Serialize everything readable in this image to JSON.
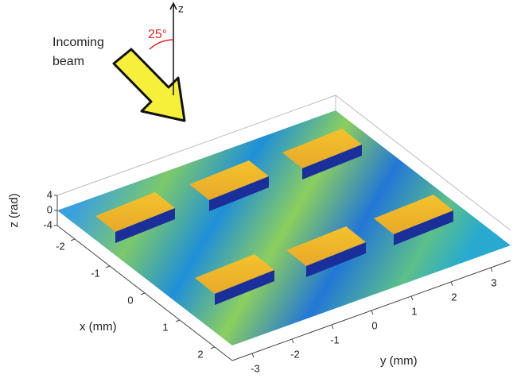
{
  "chart_data": {
    "type": "surface",
    "xlabel": "x (mm)",
    "ylabel": "y (mm)",
    "zlabel": "z (rad)",
    "xlim": [
      -2.5,
      2.5
    ],
    "ylim": [
      -3.5,
      3.5
    ],
    "zlim": [
      -4,
      4
    ],
    "xticks": [
      -2,
      -1,
      0,
      1,
      2
    ],
    "yticks": [
      -3,
      -2,
      -1,
      0,
      1,
      2,
      3
    ],
    "zticks": [
      -4,
      0,
      4
    ],
    "beam_label": [
      "Incoming",
      "beam"
    ],
    "beam_angle": "25°",
    "beam_axis_label": "z"
  }
}
